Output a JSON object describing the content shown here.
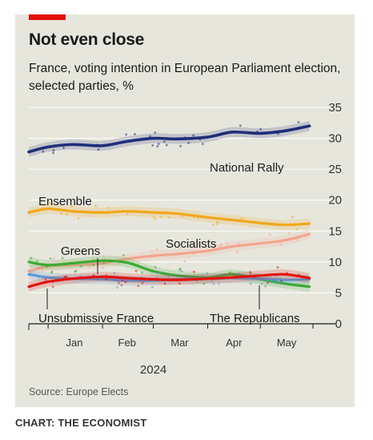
{
  "header": {
    "title": "Not even close",
    "subtitle": "France, voting intention in European Parliament election, selected parties, %"
  },
  "footer": {
    "source": "Source: Europe Elects",
    "credit": "CHART: THE ECONOMIST"
  },
  "colors": {
    "accent": "#e3120b",
    "background": "#e6e6dc",
    "grid": "#ffffff",
    "band": "#b8bfd9"
  },
  "chart_data": {
    "type": "line",
    "xlabel": "2024",
    "ylabel": "",
    "ylim": [
      0,
      35
    ],
    "yticks": [
      0,
      5,
      10,
      15,
      20,
      25,
      30,
      35
    ],
    "xticks": [
      "Jan",
      "Feb",
      "Mar",
      "Apr",
      "May"
    ],
    "x_range": [
      "2023-12-21",
      "2024-05-31"
    ],
    "grid": true,
    "legend": "direct labels",
    "series": [
      {
        "name": "National Rally",
        "color": "#1f2e7a",
        "x": [
          "2023-12-21",
          "2024-01-01",
          "2024-01-15",
          "2024-02-01",
          "2024-02-15",
          "2024-03-01",
          "2024-03-15",
          "2024-04-01",
          "2024-04-15",
          "2024-05-01",
          "2024-05-15",
          "2024-05-29"
        ],
        "values": [
          27.8,
          28.6,
          29.0,
          28.8,
          29.5,
          30.0,
          29.9,
          30.2,
          31.0,
          30.8,
          31.2,
          32.0
        ]
      },
      {
        "name": "Ensemble",
        "color": "#f2a71b",
        "x": [
          "2023-12-21",
          "2024-01-01",
          "2024-01-15",
          "2024-02-01",
          "2024-02-15",
          "2024-03-01",
          "2024-03-15",
          "2024-04-01",
          "2024-04-15",
          "2024-05-01",
          "2024-05-15",
          "2024-05-29"
        ],
        "values": [
          18.0,
          18.6,
          18.2,
          18.0,
          18.2,
          18.0,
          17.8,
          17.2,
          16.8,
          16.3,
          16.0,
          16.2
        ]
      },
      {
        "name": "Socialists",
        "color": "#f4a490",
        "x": [
          "2023-12-21",
          "2024-01-01",
          "2024-01-15",
          "2024-02-01",
          "2024-02-15",
          "2024-03-01",
          "2024-03-15",
          "2024-04-01",
          "2024-04-15",
          "2024-05-01",
          "2024-05-15",
          "2024-05-29"
        ],
        "values": [
          8.5,
          9.3,
          9.5,
          9.8,
          10.5,
          11.0,
          11.3,
          11.8,
          12.5,
          13.0,
          13.5,
          14.5
        ]
      },
      {
        "name": "Greens",
        "color": "#3caa34",
        "x": [
          "2023-12-21",
          "2024-01-01",
          "2024-01-15",
          "2024-02-01",
          "2024-02-15",
          "2024-03-01",
          "2024-03-15",
          "2024-04-01",
          "2024-04-15",
          "2024-05-01",
          "2024-05-15",
          "2024-05-29"
        ],
        "values": [
          10.0,
          9.5,
          9.8,
          10.2,
          9.9,
          8.5,
          7.8,
          7.5,
          8.0,
          7.2,
          6.5,
          6.0
        ]
      },
      {
        "name": "Unsubmissive France",
        "color": "#e3120b",
        "x": [
          "2023-12-21",
          "2024-01-01",
          "2024-01-15",
          "2024-02-01",
          "2024-02-15",
          "2024-03-01",
          "2024-03-15",
          "2024-04-01",
          "2024-04-15",
          "2024-05-01",
          "2024-05-15",
          "2024-05-29"
        ],
        "values": [
          6.0,
          6.8,
          7.3,
          7.6,
          7.4,
          7.2,
          7.1,
          7.3,
          7.5,
          7.8,
          8.0,
          7.4
        ]
      },
      {
        "name": "The Republicans",
        "color": "#5b9bd5",
        "x": [
          "2023-12-21",
          "2024-01-01",
          "2024-01-15",
          "2024-02-01",
          "2024-02-15",
          "2024-03-01",
          "2024-03-15",
          "2024-04-01",
          "2024-04-15",
          "2024-05-01",
          "2024-05-15",
          "2024-05-29"
        ],
        "values": [
          8.0,
          7.5,
          7.3,
          7.2,
          7.0,
          7.0,
          7.2,
          7.3,
          7.4,
          7.3,
          7.1,
          7.2
        ]
      }
    ]
  }
}
